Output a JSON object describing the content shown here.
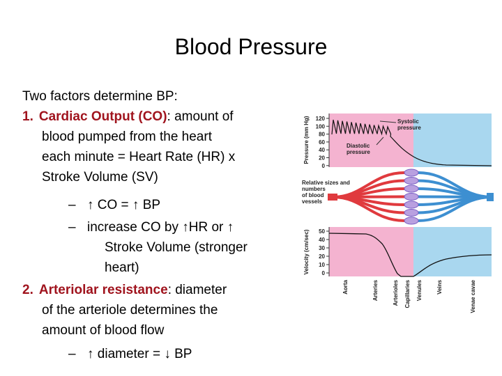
{
  "title": "Blood Pressure",
  "body": [
    {
      "text": "Two factors determine BP:"
    },
    {
      "number": "1.",
      "term": "Cardiac Output (CO)",
      "text": ": amount of"
    },
    {
      "text": "blood pumped from the heart"
    },
    {
      "text": "each minute = Heart Rate (HR) x"
    },
    {
      "text": "Stroke Volume (SV)"
    },
    {
      "bullet": "–",
      "text": "↑ CO = ↑ BP"
    },
    {
      "bullet": "–",
      "text": "increase CO by ↑HR or ↑"
    },
    {
      "text": "Stroke Volume (stronger"
    },
    {
      "text": "heart)"
    },
    {
      "number": "2.",
      "term": "Arteriolar resistance",
      "text": ": diameter"
    },
    {
      "text": "of the arteriole determines the"
    },
    {
      "text": "amount of blood flow"
    },
    {
      "bullet": "–",
      "text": "↑ diameter = ↓ BP"
    }
  ],
  "figure": {
    "pressure_axis": "Pressure (mm Hg)",
    "pressure_ticks": [
      "120",
      "100",
      "80",
      "60",
      "40",
      "20",
      "0"
    ],
    "systolic": [
      "Systolic",
      "pressure"
    ],
    "diastolic": [
      "Diastolic",
      "pressure"
    ],
    "vessels_label": [
      "Relative sizes and",
      "numbers",
      "of blood",
      "vessels"
    ],
    "velocity_axis": "Velocity (cm/sec)",
    "velocity_ticks": [
      "50",
      "40",
      "30",
      "20",
      "10",
      "0"
    ],
    "segments": [
      "Aorta",
      "Arteries",
      "Arterioles",
      "Capillaries",
      "Venules",
      "Veins",
      "Venae cavae"
    ]
  }
}
